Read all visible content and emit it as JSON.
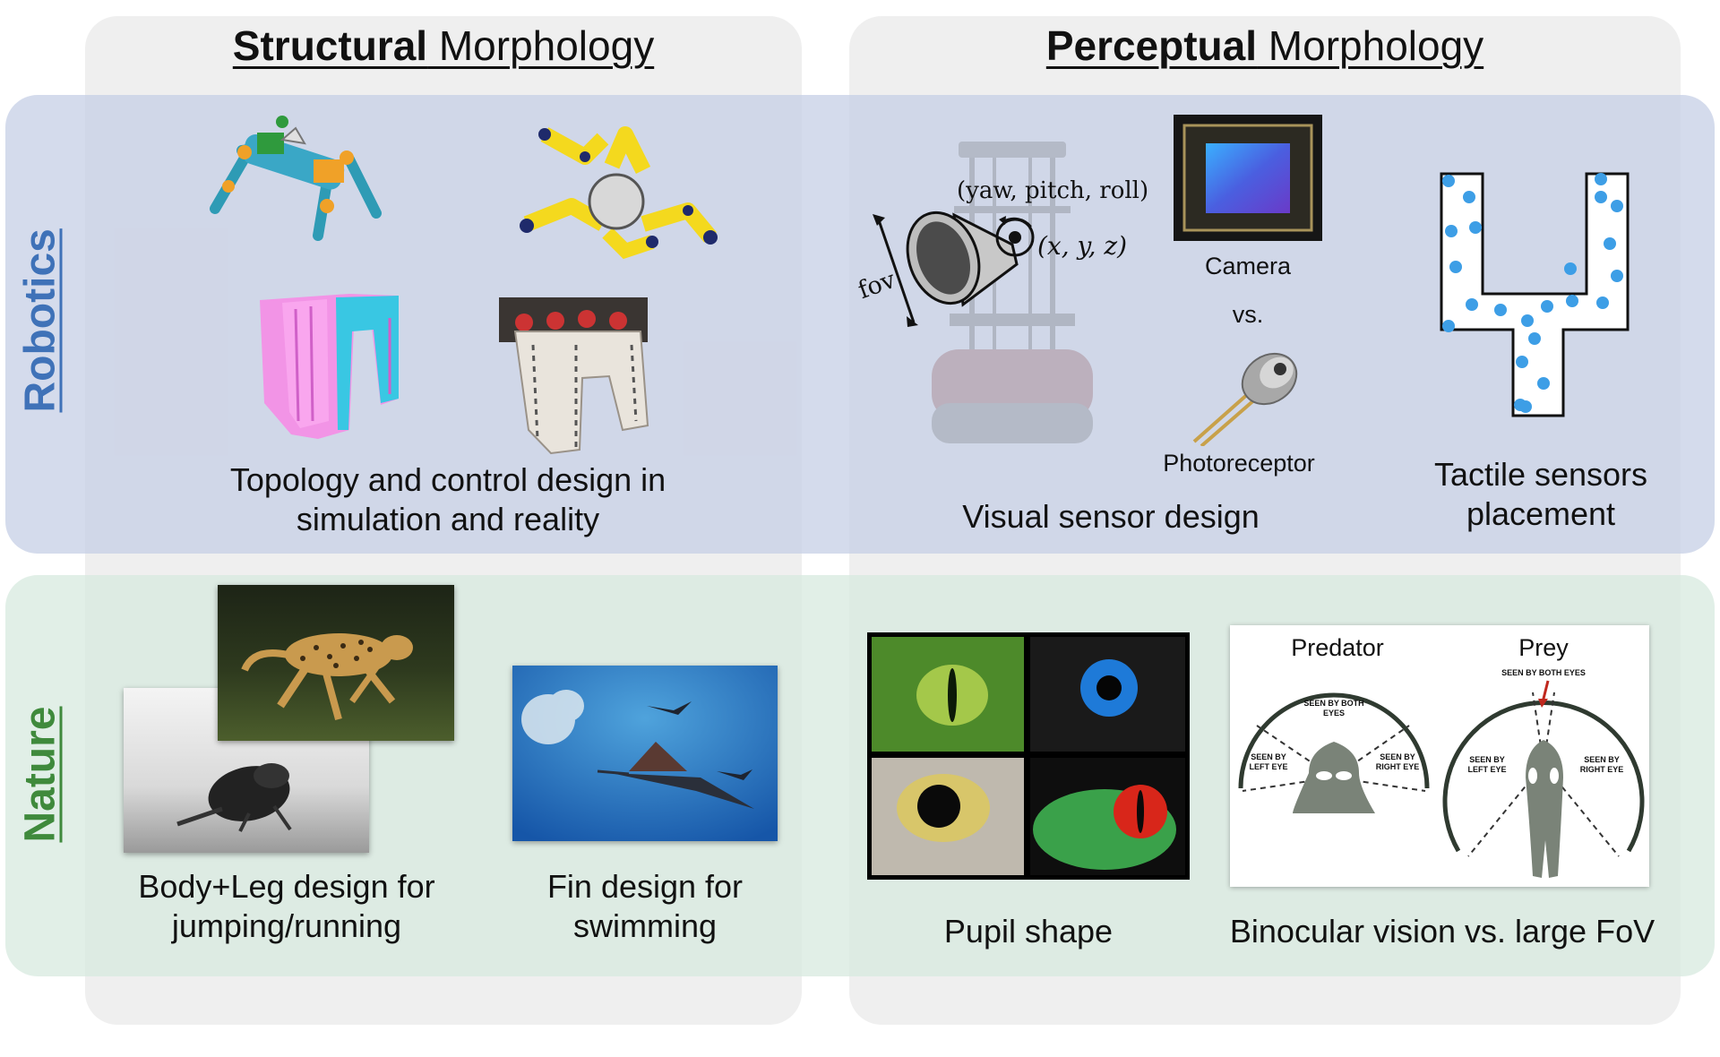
{
  "columns": {
    "structural": {
      "bold": "Structural",
      "rest": " Morphology"
    },
    "perceptual": {
      "bold": "Perceptual",
      "rest": " Morphology"
    }
  },
  "rows": {
    "robotics": {
      "label": "Robotics",
      "color": "#3f72b8"
    },
    "nature": {
      "label": "Nature",
      "color": "#3f8a3c"
    }
  },
  "robotics": {
    "topology_caption_1": "Topology and control design in",
    "topology_caption_2": "simulation and reality",
    "camera_label": "Camera",
    "vs_label": "vs.",
    "photoreceptor_label": "Photoreceptor",
    "visual_caption": "Visual sensor design",
    "ypr_label": "(yaw, pitch, roll)",
    "xyz_label": "(x, y, z)",
    "fov_label": "fov",
    "tactile_caption_1": "Tactile sensors",
    "tactile_caption_2": "placement"
  },
  "nature": {
    "body_caption_1": "Body+Leg design for",
    "body_caption_2": "jumping/running",
    "fin_caption_1": "Fin design for",
    "fin_caption_2": "swimming",
    "pupil_caption": "Pupil shape",
    "binocular_caption": "Binocular vision vs. large FoV",
    "predator_label": "Predator",
    "prey_label": "Prey",
    "seen_both": "SEEN BY BOTH EYES",
    "seen_left": "SEEN BY LEFT EYE",
    "seen_right": "SEEN BY RIGHT EYE"
  },
  "icons": {
    "quadruped": "quadruped-robot-icon",
    "hexapod": "hexapod-robot-icon",
    "sim_legs": "simulated-leg-structure-icon",
    "real_legs": "real-leg-structure-icon",
    "robot_base": "mobile-robot-icon",
    "camera_cone": "camera-cone-icon",
    "camera_sensor": "camera-sensor-icon",
    "photoreceptor": "photoreceptor-icon",
    "tactile": "tactile-sensor-icon"
  }
}
